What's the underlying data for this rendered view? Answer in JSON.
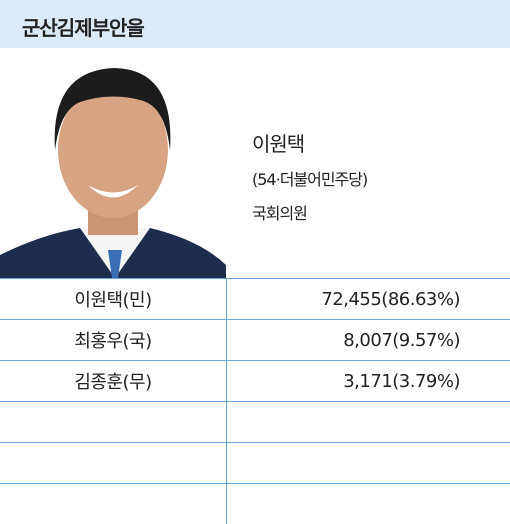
{
  "header": {
    "title": "군산김제부안을"
  },
  "profile": {
    "name": "이원택",
    "detail": "(54·더불어민주당)",
    "position": "국회의원"
  },
  "table": {
    "rows": [
      [
        "이원택(민)",
        "72,455(86.63%)"
      ],
      [
        "최홍우(국)",
        "8,007(9.57%)"
      ],
      [
        "김종훈(무)",
        "3,171(3.79%)"
      ]
    ]
  }
}
